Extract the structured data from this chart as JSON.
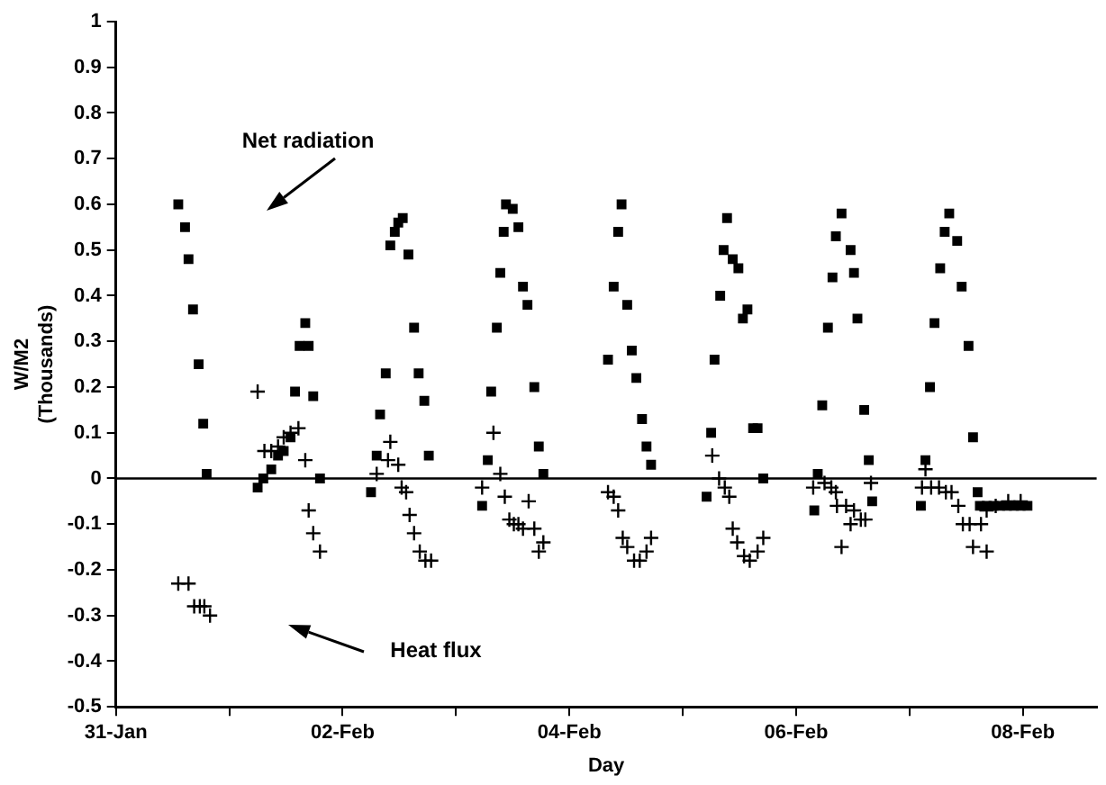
{
  "chart_data": {
    "type": "scatter",
    "xlabel": "Day",
    "ylabel": "W/M2\n(Thousands)",
    "xlim": [
      "--01-31",
      "--02-08T15:36"
    ],
    "ylim": [
      -0.5,
      1
    ],
    "xticks": [
      {
        "value": "--01-31",
        "label": "31-Jan"
      },
      {
        "value": "--02-01",
        "label": null
      },
      {
        "value": "--02-02",
        "label": "02-Feb"
      },
      {
        "value": "--02-03",
        "label": null
      },
      {
        "value": "--02-04",
        "label": "04-Feb"
      },
      {
        "value": "--02-05",
        "label": null
      },
      {
        "value": "--02-06",
        "label": "06-Feb"
      },
      {
        "value": "--02-07",
        "label": null
      },
      {
        "value": "--02-08",
        "label": "08-Feb"
      }
    ],
    "yticks": [
      {
        "value": -0.5,
        "label": "-0.5"
      },
      {
        "value": -0.4,
        "label": "-0.4"
      },
      {
        "value": -0.3,
        "label": "-0.3"
      },
      {
        "value": -0.2,
        "label": "-0.2"
      },
      {
        "value": -0.1,
        "label": "-0.1"
      },
      0,
      {
        "value": 0.1,
        "label": "0.1"
      },
      {
        "value": 0.2,
        "label": "0.2"
      },
      {
        "value": 0.3,
        "label": "0.3"
      },
      {
        "value": 0.4,
        "label": "0.4"
      },
      {
        "value": 0.5,
        "label": "0.5"
      },
      {
        "value": 0.6,
        "label": "0.6"
      },
      {
        "value": 0.7,
        "label": "0.7"
      },
      {
        "value": 0.8,
        "label": "0.8"
      },
      {
        "value": 0.9,
        "label": "0.9"
      },
      1
    ],
    "grid": false,
    "legend": false,
    "ref_lines": [
      {
        "axis": "y",
        "value": 0,
        "color": "#000000"
      }
    ],
    "annotations": [
      "Net radiation",
      "Heat flux"
    ],
    "series": [
      {
        "color": "#000000",
        "marker": "square",
        "x": [
          "--01-31T13:12",
          "--01-31T14:38",
          "--01-31T15:22",
          "--01-31T16:19",
          "--01-31T17:31",
          "--01-31T18:29",
          "--01-31T19:12",
          "--02-01T06:00",
          "--02-01T07:12",
          "--02-01T08:53",
          "--02-01T10:19",
          "--02-01T11:31",
          "--02-01T12:58",
          "--02-01T13:55",
          "--02-01T14:53",
          "--02-01T16:05",
          "--02-01T16:48",
          "--02-01T17:46",
          "--02-01T19:12",
          "--02-02T06:00",
          "--02-02T07:12",
          "--02-02T07:55",
          "--02-02T09:07",
          "--02-02T10:05",
          "--02-02T11:02",
          "--02-02T11:46",
          "--02-02T12:43",
          "--02-02T13:55",
          "--02-02T15:07",
          "--02-02T16:05",
          "--02-02T17:17",
          "--02-02T18:14",
          "--02-03T05:31",
          "--02-03T06:43",
          "--02-03T07:26",
          "--02-03T08:38",
          "--02-03T09:22",
          "--02-03T10:05",
          "--02-03T10:34",
          "--02-03T12:00",
          "--02-03T13:12",
          "--02-03T14:10",
          "--02-03T15:07",
          "--02-03T16:34",
          "--02-03T17:31",
          "--02-03T18:29",
          "--02-04T08:10",
          "--02-04T09:22",
          "--02-04T10:19",
          "--02-04T11:02",
          "--02-04T12:14",
          "--02-04T13:12",
          "--02-04T14:10",
          "--02-04T15:22",
          "--02-04T16:19",
          "--02-04T17:17",
          "--02-05T05:02",
          "--02-05T06:00",
          "--02-05T06:43",
          "--02-05T07:55",
          "--02-05T08:38",
          "--02-05T09:22",
          "--02-05T10:34",
          "--02-05T11:46",
          "--02-05T12:43",
          "--02-05T13:41",
          "--02-05T14:53",
          "--02-05T15:50",
          "--02-05T17:02",
          "--02-06T03:50",
          "--02-06T04:34",
          "--02-06T05:31",
          "--02-06T06:43",
          "--02-06T07:41",
          "--02-06T08:24",
          "--02-06T09:36",
          "--02-06T11:31",
          "--02-06T12:14",
          "--02-06T12:58",
          "--02-06T14:24",
          "--02-06T15:22",
          "--02-06T16:05",
          "--02-07T02:24",
          "--02-07T03:22",
          "--02-07T04:19",
          "--02-07T05:17",
          "--02-07T06:29",
          "--02-07T07:26",
          "--02-07T08:24",
          "--02-07T10:05",
          "--02-07T11:02",
          "--02-07T12:29",
          "--02-07T13:26",
          "--02-07T14:24",
          "--02-07T14:53",
          "--02-07T16:19",
          "--02-07T17:46",
          "--02-07T19:12",
          "--02-07T20:38",
          "--02-07T22:05",
          "--02-07T23:31",
          "--02-08T00:58"
        ],
        "values": [
          0.6,
          0.55,
          0.48,
          0.37,
          0.25,
          0.12,
          0.01,
          -0.02,
          0,
          0.02,
          0.05,
          0.06,
          0.09,
          0.19,
          0.29,
          0.34,
          0.29,
          0.18,
          0,
          -0.03,
          0.05,
          0.14,
          0.23,
          0.51,
          0.54,
          0.56,
          0.57,
          0.49,
          0.33,
          0.23,
          0.17,
          0.05,
          -0.06,
          0.04,
          0.19,
          0.33,
          0.45,
          0.54,
          0.6,
          0.59,
          0.55,
          0.42,
          0.38,
          0.2,
          0.07,
          0.01,
          0.26,
          0.42,
          0.54,
          0.6,
          0.38,
          0.28,
          0.22,
          0.13,
          0.07,
          0.03,
          -0.04,
          0.1,
          0.26,
          0.4,
          0.5,
          0.57,
          0.48,
          0.46,
          0.35,
          0.37,
          0.11,
          0.11,
          0,
          -0.07,
          0.01,
          0.16,
          0.33,
          0.44,
          0.53,
          0.58,
          0.5,
          0.45,
          0.35,
          0.15,
          0.04,
          -0.05,
          -0.06,
          0.04,
          0.2,
          0.34,
          0.46,
          0.54,
          0.58,
          0.52,
          0.42,
          0.29,
          0.09,
          -0.03,
          -0.06,
          -0.06,
          -0.06,
          -0.06,
          -0.06,
          -0.06,
          -0.06,
          -0.06
        ]
      },
      {
        "color": "#000000",
        "marker": "cross",
        "x": [
          "--01-31T13:12",
          "--01-31T15:22",
          "--01-31T16:34",
          "--01-31T17:46",
          "--01-31T18:43",
          "--01-31T19:55",
          "--02-01T06:00",
          "--02-01T07:26",
          "--02-01T08:53",
          "--02-01T10:19",
          "--02-01T11:31",
          "--02-01T12:58",
          "--02-01T14:38",
          "--02-01T16:05",
          "--02-01T16:48",
          "--02-01T17:46",
          "--02-01T19:12",
          "--02-02T07:12",
          "--02-02T09:36",
          "--02-02T10:05",
          "--02-02T11:46",
          "--02-02T12:29",
          "--02-02T13:26",
          "--02-02T14:10",
          "--02-02T15:07",
          "--02-02T16:19",
          "--02-02T17:31",
          "--02-02T18:43",
          "--02-03T05:31",
          "--02-03T07:55",
          "--02-03T09:22",
          "--02-03T10:19",
          "--02-03T11:17",
          "--02-03T12:14",
          "--02-03T13:12",
          "--02-03T14:10",
          "--02-03T15:22",
          "--02-03T16:34",
          "--02-03T17:31",
          "--02-03T18:29",
          "--02-04T08:10",
          "--02-04T09:22",
          "--02-04T10:19",
          "--02-04T11:17",
          "--02-04T12:14",
          "--02-04T13:41",
          "--02-04T14:53",
          "--02-04T16:19",
          "--02-04T17:17",
          "--02-05T06:14",
          "--02-05T07:41",
          "--02-05T08:53",
          "--02-05T09:50",
          "--02-05T10:34",
          "--02-05T11:31",
          "--02-05T12:58",
          "--02-05T14:10",
          "--02-05T15:50",
          "--02-05T17:02",
          "--02-06T03:36",
          "--02-06T06:00",
          "--02-06T07:26",
          "--02-06T08:24",
          "--02-06T08:38",
          "--02-06T09:36",
          "--02-06T10:34",
          "--02-06T11:31",
          "--02-06T12:14",
          "--02-06T13:41",
          "--02-06T14:38",
          "--02-06T15:50",
          "--02-07T02:38",
          "--02-07T03:22",
          "--02-07T04:34",
          "--02-07T06:14",
          "--02-07T07:41",
          "--02-07T08:53",
          "--02-07T10:19",
          "--02-07T11:17",
          "--02-07T12:43",
          "--02-07T13:26",
          "--02-07T15:07",
          "--02-07T16:19",
          "--02-07T16:19",
          "--02-07T18:14",
          "--02-07T20:53",
          "--02-07T23:31"
        ],
        "values": [
          -0.23,
          -0.23,
          -0.28,
          -0.28,
          -0.28,
          -0.3,
          0.19,
          0.06,
          0.06,
          0.07,
          0.09,
          0.1,
          0.11,
          0.04,
          -0.07,
          -0.12,
          -0.16,
          0.01,
          0.04,
          0.08,
          0.03,
          -0.02,
          -0.03,
          -0.08,
          -0.12,
          -0.16,
          -0.18,
          -0.18,
          -0.02,
          0.1,
          0.01,
          -0.04,
          -0.09,
          -0.1,
          -0.1,
          -0.11,
          -0.05,
          -0.11,
          -0.16,
          -0.14,
          -0.03,
          -0.04,
          -0.07,
          -0.13,
          -0.15,
          -0.18,
          -0.18,
          -0.16,
          -0.13,
          0.05,
          0,
          -0.02,
          -0.04,
          -0.11,
          -0.14,
          -0.17,
          -0.18,
          -0.16,
          -0.13,
          -0.02,
          -0.01,
          -0.02,
          -0.03,
          -0.06,
          -0.15,
          -0.06,
          -0.1,
          -0.07,
          -0.09,
          -0.09,
          -0.01,
          -0.02,
          0.02,
          -0.02,
          -0.02,
          -0.03,
          -0.03,
          -0.06,
          -0.1,
          -0.1,
          -0.15,
          -0.1,
          -0.16,
          -0.07,
          -0.06,
          -0.05,
          -0.05
        ]
      }
    ]
  }
}
